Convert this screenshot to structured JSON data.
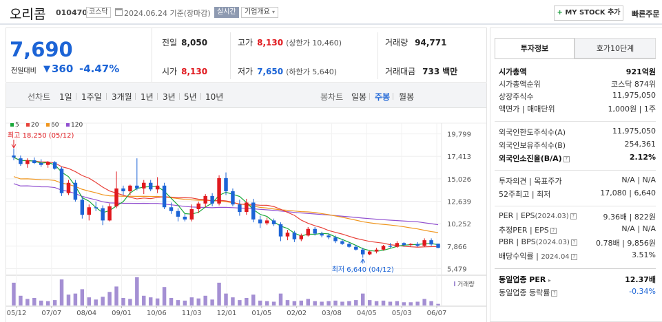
{
  "header": {
    "stock_name": "오리콤",
    "stock_code": "010470",
    "market": "코스닥",
    "date_text": "2024.06.24 기준(장마감)",
    "realtime": "실시간",
    "company_overview": "기업개요",
    "mystock_plus": "+",
    "mystock_label": "MY STOCK 추가",
    "quick_order": "빠른주문"
  },
  "price": {
    "current": "7,690",
    "change_label": "전일대비",
    "change_arrow": "▼",
    "change_value": "360",
    "change_rate": "-4.47%"
  },
  "quote": {
    "prev_close_label": "전일",
    "prev_close": "8,050",
    "high_label": "고가",
    "high": "8,130",
    "upper_limit": "(상한가 10,460)",
    "volume_label": "거래량",
    "volume": "94,771",
    "open_label": "시가",
    "open": "8,130",
    "low_label": "저가",
    "low": "7,650",
    "lower_limit": "(하한가 5,640)",
    "amount_label": "거래대금",
    "amount": "733",
    "amount_unit": "백만"
  },
  "chart_tabs": {
    "line_chart": "선차트",
    "periods": [
      "1일",
      "1주일",
      "3개월",
      "1년",
      "3년",
      "5년",
      "10년"
    ],
    "candle_chart": "봉차트",
    "candles": [
      "일봉",
      "주봉",
      "월봉"
    ],
    "active_candle": "주봉"
  },
  "colors": {
    "up": "#e0191e",
    "down": "#1c64d6",
    "ma5": "#1aa83a",
    "ma20": "#e8423a",
    "ma60": "#f0961e",
    "ma120": "#9150d0",
    "volume": "#a48fd3"
  },
  "chart_data": {
    "type": "candlestick",
    "legend": [
      "5",
      "20",
      "60",
      "120"
    ],
    "y_ticks": [
      "19,799",
      "17,413",
      "15,026",
      "12,639",
      "10,252",
      "7,866",
      "5,479"
    ],
    "ylim": [
      5000,
      20500
    ],
    "x_ticks": [
      "05/12",
      "07/07",
      "08/04",
      "09/01",
      "10/06",
      "11/03",
      "12/01",
      "01/05",
      "02/02",
      "03/08",
      "04/05",
      "05/03",
      "06/07"
    ],
    "max_label": "최고 18,250 (05/12)",
    "min_label": "최저 6,640 (04/12)",
    "volume_label": "거래량",
    "candles": [
      {
        "o": 17500,
        "h": 18250,
        "l": 17000,
        "c": 17300
      },
      {
        "o": 17200,
        "h": 17500,
        "l": 16400,
        "c": 16600
      },
      {
        "o": 16600,
        "h": 17200,
        "l": 16200,
        "c": 17000
      },
      {
        "o": 17000,
        "h": 17300,
        "l": 16600,
        "c": 16700
      },
      {
        "o": 16700,
        "h": 17100,
        "l": 16300,
        "c": 16500
      },
      {
        "o": 16500,
        "h": 16900,
        "l": 16200,
        "c": 16800
      },
      {
        "o": 16800,
        "h": 16900,
        "l": 16000,
        "c": 16100
      },
      {
        "o": 16100,
        "h": 16300,
        "l": 13200,
        "c": 13500
      },
      {
        "o": 13500,
        "h": 14900,
        "l": 13300,
        "c": 14600
      },
      {
        "o": 14600,
        "h": 14900,
        "l": 12600,
        "c": 12800
      },
      {
        "o": 12800,
        "h": 13100,
        "l": 10800,
        "c": 11200
      },
      {
        "o": 11200,
        "h": 12300,
        "l": 10600,
        "c": 12000
      },
      {
        "o": 12000,
        "h": 12600,
        "l": 11600,
        "c": 11900
      },
      {
        "o": 11900,
        "h": 12200,
        "l": 10100,
        "c": 10600
      },
      {
        "o": 10600,
        "h": 12400,
        "l": 10500,
        "c": 12100
      },
      {
        "o": 12100,
        "h": 15800,
        "l": 11900,
        "c": 14000
      },
      {
        "o": 14000,
        "h": 14300,
        "l": 13300,
        "c": 13700
      },
      {
        "o": 13700,
        "h": 14400,
        "l": 13300,
        "c": 14300
      },
      {
        "o": 14300,
        "h": 17200,
        "l": 13800,
        "c": 14000
      },
      {
        "o": 14000,
        "h": 14900,
        "l": 13400,
        "c": 14600
      },
      {
        "o": 14600,
        "h": 14900,
        "l": 13700,
        "c": 13900
      },
      {
        "o": 13900,
        "h": 15200,
        "l": 13500,
        "c": 14300
      },
      {
        "o": 14300,
        "h": 14600,
        "l": 11800,
        "c": 12000
      },
      {
        "o": 12000,
        "h": 12500,
        "l": 11300,
        "c": 11600
      },
      {
        "o": 11600,
        "h": 11900,
        "l": 10500,
        "c": 11000
      },
      {
        "o": 11000,
        "h": 11300,
        "l": 10500,
        "c": 10700
      },
      {
        "o": 10700,
        "h": 12300,
        "l": 10500,
        "c": 11800
      },
      {
        "o": 11800,
        "h": 12600,
        "l": 11400,
        "c": 12400
      },
      {
        "o": 12400,
        "h": 13400,
        "l": 12000,
        "c": 13200
      },
      {
        "o": 13200,
        "h": 13500,
        "l": 12100,
        "c": 12400
      },
      {
        "o": 12400,
        "h": 15400,
        "l": 12200,
        "c": 15100
      },
      {
        "o": 15100,
        "h": 15700,
        "l": 13300,
        "c": 13700
      },
      {
        "o": 13700,
        "h": 14000,
        "l": 12100,
        "c": 12300
      },
      {
        "o": 12300,
        "h": 12800,
        "l": 11100,
        "c": 11500
      },
      {
        "o": 11500,
        "h": 12900,
        "l": 11200,
        "c": 12500
      },
      {
        "o": 12500,
        "h": 12900,
        "l": 10400,
        "c": 10700
      },
      {
        "o": 10700,
        "h": 11100,
        "l": 9800,
        "c": 10300
      },
      {
        "o": 10300,
        "h": 10900,
        "l": 10100,
        "c": 10600
      },
      {
        "o": 10600,
        "h": 10800,
        "l": 10000,
        "c": 10200
      },
      {
        "o": 10200,
        "h": 10400,
        "l": 8400,
        "c": 8900
      },
      {
        "o": 8900,
        "h": 9600,
        "l": 8500,
        "c": 9300
      },
      {
        "o": 9300,
        "h": 9500,
        "l": 8300,
        "c": 8600
      },
      {
        "o": 8600,
        "h": 9200,
        "l": 8400,
        "c": 9000
      },
      {
        "o": 9000,
        "h": 9900,
        "l": 8900,
        "c": 9700
      },
      {
        "o": 9700,
        "h": 9900,
        "l": 9000,
        "c": 9200
      },
      {
        "o": 9200,
        "h": 9400,
        "l": 8800,
        "c": 9000
      },
      {
        "o": 9000,
        "h": 9200,
        "l": 8600,
        "c": 8800
      },
      {
        "o": 8800,
        "h": 9000,
        "l": 8200,
        "c": 8400
      },
      {
        "o": 8400,
        "h": 8600,
        "l": 8000,
        "c": 8100
      },
      {
        "o": 8100,
        "h": 8300,
        "l": 7700,
        "c": 7800
      },
      {
        "o": 7800,
        "h": 8000,
        "l": 7400,
        "c": 7500
      },
      {
        "o": 7500,
        "h": 7700,
        "l": 6640,
        "c": 7000
      },
      {
        "o": 7000,
        "h": 7400,
        "l": 6900,
        "c": 7300
      },
      {
        "o": 7300,
        "h": 7700,
        "l": 7100,
        "c": 7500
      },
      {
        "o": 7500,
        "h": 8000,
        "l": 7400,
        "c": 7900
      },
      {
        "o": 7900,
        "h": 8200,
        "l": 7700,
        "c": 7800
      },
      {
        "o": 7800,
        "h": 8400,
        "l": 7700,
        "c": 8200
      },
      {
        "o": 8200,
        "h": 8300,
        "l": 7800,
        "c": 8000
      },
      {
        "o": 8000,
        "h": 8200,
        "l": 7800,
        "c": 8100
      },
      {
        "o": 8100,
        "h": 8300,
        "l": 7800,
        "c": 7900
      },
      {
        "o": 7900,
        "h": 8700,
        "l": 7800,
        "c": 8500
      },
      {
        "o": 8500,
        "h": 8700,
        "l": 7900,
        "c": 8050
      },
      {
        "o": 8130,
        "h": 8130,
        "l": 7650,
        "c": 7690
      }
    ],
    "volumes": [
      42,
      18,
      12,
      14,
      9,
      8,
      10,
      48,
      20,
      22,
      30,
      15,
      11,
      16,
      25,
      35,
      14,
      12,
      52,
      18,
      15,
      13,
      34,
      14,
      10,
      9,
      15,
      13,
      18,
      11,
      42,
      22,
      15,
      10,
      14,
      20,
      9,
      8,
      7,
      22,
      10,
      8,
      9,
      12,
      8,
      7,
      8,
      9,
      7,
      8,
      10,
      22,
      10,
      8,
      9,
      7,
      8,
      6,
      6,
      7,
      12,
      8,
      3
    ]
  },
  "right_panel": {
    "tab_invest": "투자정보",
    "tab_orderbook": "호가10단계",
    "mktcap_label": "시가총액",
    "mktcap_value": "921억원",
    "mktcap_rank_label": "시가총액순위",
    "mktcap_rank_market": "코스닥",
    "mktcap_rank_value": "874위",
    "shares_label": "상장주식수",
    "shares_value": "11,975,050",
    "par_label": "액면가",
    "trade_unit_label": "매매단위",
    "par_value": "1,000원",
    "trade_unit_value": "1주",
    "foreign_limit_label": "외국인한도주식수(A)",
    "foreign_limit_value": "11,975,050",
    "foreign_hold_label": "외국인보유주식수(B)",
    "foreign_hold_value": "254,361",
    "foreign_ratio_label": "외국인소진율(B/A)",
    "foreign_ratio_value": "2.12%",
    "opinion_label": "투자의견",
    "target_label": "목표주가",
    "opinion_value": "N/A",
    "target_value": "N/A",
    "w52_high_label": "52주최고",
    "w52_low_label": "최저",
    "w52_high": "17,080",
    "w52_low": "6,640",
    "per_label": "PER",
    "eps_label": "EPS",
    "per_eps_date": "(2024.03)",
    "per_value": "9.36배",
    "eps_value": "822원",
    "est_per_label": "추정PER",
    "est_eps_label": "EPS",
    "est_per_value": "N/A",
    "est_eps_value": "N/A",
    "pbr_label": "PBR",
    "bps_label": "BPS",
    "pbr_bps_date": "(2024.03)",
    "pbr_value": "0.78배",
    "bps_value": "9,856원",
    "div_label": "배당수익률",
    "div_date": "2024.04",
    "div_value": "3.51%",
    "sector_per_label": "동일업종 PER",
    "sector_per_value": "12.37배",
    "sector_rate_label": "동일업종 등락률",
    "sector_rate_value": "-0.34%",
    "help_mark": "?"
  }
}
